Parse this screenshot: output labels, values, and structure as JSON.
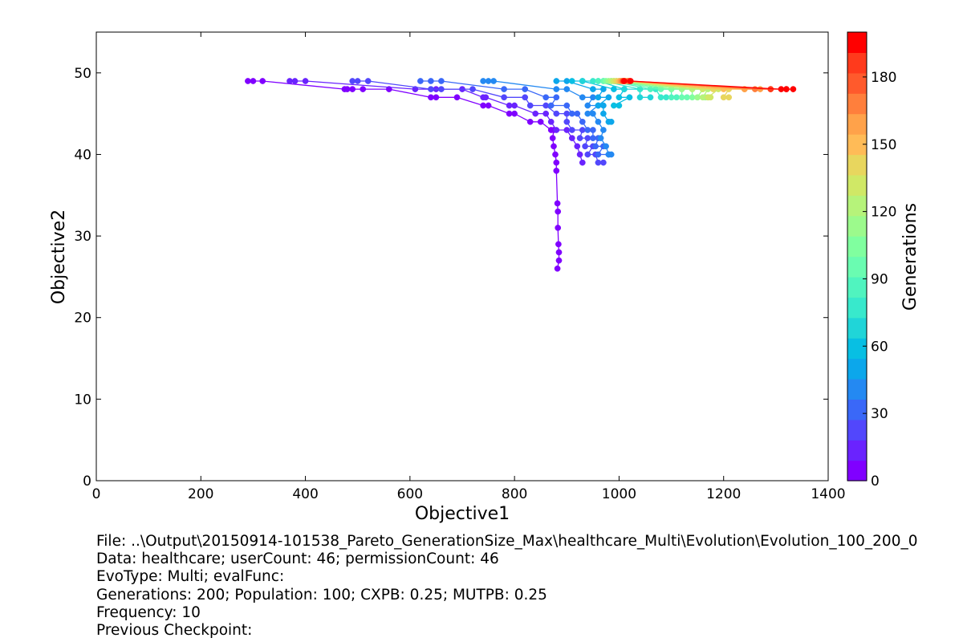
{
  "chart_data": {
    "type": "line",
    "title": "",
    "xlabel": "Objective1",
    "ylabel": "Objective2",
    "xlim": [
      0,
      1400
    ],
    "ylim": [
      0,
      55
    ],
    "xticks": [
      0,
      200,
      400,
      600,
      800,
      1000,
      1200,
      1400
    ],
    "yticks": [
      0,
      10,
      20,
      30,
      40,
      50
    ],
    "grid": false,
    "colorbar": {
      "label": "Generations",
      "colormap": "rainbow",
      "range": [
        0,
        200
      ],
      "ticks": [
        0,
        30,
        60,
        90,
        120,
        150,
        180
      ],
      "colors": [
        "#8000ff",
        "#6a23fe",
        "#5247fc",
        "#3a68f8",
        "#2489f2",
        "#0ca7eb",
        "#08bfe3",
        "#20d5d8",
        "#38e9cc",
        "#50f4bf",
        "#6afcb1",
        "#80ff9f",
        "#9cfa8c",
        "#b6f37a",
        "#d0e866",
        "#e8d65e",
        "#ffbb57",
        "#ffa24a",
        "#ff7f3c",
        "#ff5a2c",
        "#ff3a1c",
        "#ff0000"
      ]
    },
    "series": [
      {
        "generation": 0,
        "color": "#8000ff",
        "points": [
          [
            290,
            49
          ],
          [
            300,
            49
          ],
          [
            318,
            49
          ],
          [
            475,
            48
          ],
          [
            480,
            48
          ],
          [
            490,
            48
          ],
          [
            510,
            48
          ],
          [
            560,
            48
          ],
          [
            640,
            47
          ],
          [
            650,
            47
          ],
          [
            690,
            47
          ],
          [
            740,
            46
          ],
          [
            750,
            46
          ],
          [
            790,
            45
          ],
          [
            800,
            45
          ],
          [
            830,
            44
          ],
          [
            850,
            44
          ],
          [
            870,
            43
          ],
          [
            875,
            43
          ],
          [
            873,
            42
          ],
          [
            875,
            41
          ],
          [
            878,
            40
          ],
          [
            880,
            39
          ],
          [
            880,
            38
          ],
          [
            882,
            34
          ],
          [
            883,
            33
          ],
          [
            883,
            31
          ],
          [
            884,
            29
          ],
          [
            885,
            28
          ],
          [
            885,
            27
          ],
          [
            882,
            26
          ]
        ]
      },
      {
        "generation": 10,
        "color": "#6a23fe",
        "points": [
          [
            370,
            49
          ],
          [
            380,
            49
          ],
          [
            400,
            49
          ],
          [
            610,
            48
          ],
          [
            650,
            48
          ],
          [
            700,
            48
          ],
          [
            740,
            47
          ],
          [
            745,
            47
          ],
          [
            790,
            46
          ],
          [
            800,
            46
          ],
          [
            840,
            45
          ],
          [
            860,
            45
          ],
          [
            870,
            44
          ],
          [
            880,
            43
          ],
          [
            900,
            43
          ],
          [
            910,
            42
          ],
          [
            920,
            41
          ],
          [
            925,
            40
          ],
          [
            930,
            39
          ]
        ]
      },
      {
        "generation": 20,
        "color": "#5247fc",
        "points": [
          [
            490,
            49
          ],
          [
            500,
            49
          ],
          [
            520,
            49
          ],
          [
            640,
            48
          ],
          [
            660,
            48
          ],
          [
            720,
            48
          ],
          [
            780,
            47
          ],
          [
            820,
            47
          ],
          [
            830,
            46
          ],
          [
            860,
            46
          ],
          [
            880,
            45
          ],
          [
            900,
            45
          ],
          [
            900,
            44
          ],
          [
            910,
            43
          ],
          [
            930,
            43
          ],
          [
            925,
            42
          ],
          [
            940,
            42
          ],
          [
            935,
            41
          ],
          [
            950,
            41
          ],
          [
            940,
            40
          ],
          [
            955,
            40
          ],
          [
            960,
            39
          ],
          [
            970,
            39
          ]
        ]
      },
      {
        "generation": 30,
        "color": "#3a68f8",
        "points": [
          [
            620,
            49
          ],
          [
            640,
            49
          ],
          [
            660,
            49
          ],
          [
            780,
            48
          ],
          [
            820,
            48
          ],
          [
            860,
            47
          ],
          [
            880,
            47
          ],
          [
            870,
            46
          ],
          [
            900,
            46
          ],
          [
            910,
            45
          ],
          [
            920,
            45
          ],
          [
            930,
            44
          ],
          [
            940,
            43
          ],
          [
            950,
            43
          ],
          [
            950,
            42
          ],
          [
            960,
            42
          ],
          [
            955,
            41
          ],
          [
            970,
            41
          ],
          [
            960,
            40
          ],
          [
            980,
            40
          ]
        ]
      },
      {
        "generation": 40,
        "color": "#2489f2",
        "points": [
          [
            740,
            49
          ],
          [
            750,
            49
          ],
          [
            760,
            49
          ],
          [
            880,
            48
          ],
          [
            900,
            48
          ],
          [
            930,
            47
          ],
          [
            950,
            47
          ],
          [
            940,
            46
          ],
          [
            960,
            46
          ],
          [
            940,
            45
          ],
          [
            950,
            45
          ],
          [
            960,
            44
          ],
          [
            970,
            43
          ],
          [
            965,
            42
          ],
          [
            975,
            41
          ],
          [
            980,
            40
          ],
          [
            985,
            40
          ]
        ]
      },
      {
        "generation": 50,
        "color": "#0ca7eb",
        "points": [
          [
            880,
            49
          ],
          [
            900,
            49
          ],
          [
            950,
            48
          ],
          [
            970,
            48
          ],
          [
            960,
            47
          ],
          [
            980,
            47
          ],
          [
            960,
            46
          ],
          [
            970,
            46
          ],
          [
            970,
            45
          ],
          [
            980,
            44
          ],
          [
            985,
            44
          ]
        ]
      },
      {
        "generation": 60,
        "color": "#08bfe3",
        "points": [
          [
            910,
            49
          ],
          [
            930,
            49
          ],
          [
            990,
            48
          ],
          [
            1010,
            48
          ],
          [
            1000,
            47
          ],
          [
            1020,
            47
          ],
          [
            990,
            46
          ],
          [
            1000,
            46
          ]
        ]
      },
      {
        "generation": 70,
        "color": "#20d5d8",
        "points": [
          [
            930,
            49
          ],
          [
            960,
            49
          ],
          [
            1010,
            48
          ],
          [
            1040,
            48
          ],
          [
            1040,
            47
          ],
          [
            1060,
            47
          ]
        ]
      },
      {
        "generation": 80,
        "color": "#38e9cc",
        "points": [
          [
            950,
            49
          ],
          [
            970,
            49
          ],
          [
            1040,
            48
          ],
          [
            1070,
            48
          ],
          [
            1080,
            47
          ],
          [
            1090,
            47
          ]
        ]
      },
      {
        "generation": 90,
        "color": "#50f4bf",
        "points": [
          [
            960,
            49
          ],
          [
            985,
            49
          ],
          [
            1060,
            48
          ],
          [
            1100,
            48
          ],
          [
            1100,
            47
          ],
          [
            1110,
            47
          ]
        ]
      },
      {
        "generation": 100,
        "color": "#6afcb1",
        "points": [
          [
            970,
            49
          ],
          [
            990,
            49
          ],
          [
            1080,
            48
          ],
          [
            1120,
            48
          ],
          [
            1120,
            47
          ],
          [
            1130,
            47
          ]
        ]
      },
      {
        "generation": 110,
        "color": "#80ff9f",
        "points": [
          [
            975,
            49
          ],
          [
            995,
            49
          ],
          [
            1100,
            48
          ],
          [
            1140,
            48
          ],
          [
            1140,
            47
          ],
          [
            1150,
            47
          ]
        ]
      },
      {
        "generation": 120,
        "color": "#9cfa8c",
        "points": [
          [
            980,
            49
          ],
          [
            1000,
            49
          ],
          [
            1120,
            48
          ],
          [
            1160,
            48
          ],
          [
            1150,
            47
          ],
          [
            1165,
            47
          ]
        ]
      },
      {
        "generation": 130,
        "color": "#b6f37a",
        "points": [
          [
            985,
            49
          ],
          [
            1005,
            49
          ],
          [
            1140,
            48
          ],
          [
            1170,
            48
          ],
          [
            1160,
            47
          ],
          [
            1170,
            47
          ]
        ]
      },
      {
        "generation": 140,
        "color": "#d0e866",
        "points": [
          [
            990,
            49
          ],
          [
            1010,
            49
          ],
          [
            1160,
            48
          ],
          [
            1190,
            48
          ],
          [
            1170,
            47
          ],
          [
            1175,
            47
          ]
        ]
      },
      {
        "generation": 150,
        "color": "#e8d65e",
        "points": [
          [
            995,
            49
          ],
          [
            1012,
            49
          ],
          [
            1180,
            48
          ],
          [
            1210,
            48
          ],
          [
            1200,
            47
          ],
          [
            1210,
            47
          ]
        ]
      },
      {
        "generation": 160,
        "color": "#ffbb57",
        "points": [
          [
            1000,
            49
          ],
          [
            1014,
            49
          ],
          [
            1200,
            48
          ],
          [
            1240,
            48
          ]
        ]
      },
      {
        "generation": 170,
        "color": "#ffa24a",
        "points": [
          [
            1003,
            49
          ],
          [
            1016,
            49
          ],
          [
            1240,
            48
          ],
          [
            1270,
            48
          ]
        ]
      },
      {
        "generation": 180,
        "color": "#ff7f3c",
        "points": [
          [
            1006,
            49
          ],
          [
            1018,
            49
          ],
          [
            1260,
            48
          ],
          [
            1290,
            48
          ]
        ]
      },
      {
        "generation": 190,
        "color": "#ff3a1c",
        "points": [
          [
            1008,
            49
          ],
          [
            1020,
            49
          ],
          [
            1290,
            48
          ],
          [
            1320,
            48
          ]
        ]
      },
      {
        "generation": 200,
        "color": "#ff0000",
        "points": [
          [
            1010,
            49
          ],
          [
            1022,
            49
          ],
          [
            1310,
            48
          ],
          [
            1320,
            48
          ],
          [
            1333,
            48
          ]
        ]
      }
    ]
  },
  "info": {
    "file": "File: ..\\Output\\20150914-101538_Pareto_GenerationSize_Max\\healthcare_Multi\\Evolution\\Evolution_100_200_0",
    "data": "Data: healthcare; userCount: 46; permissionCount: 46",
    "evotype": "EvoType: Multi; evalFunc:",
    "generations": "Generations: 200; Population: 100; CXPB: 0.25; MUTPB: 0.25",
    "frequency": "Frequency: 10",
    "checkpoint": "Previous Checkpoint:"
  }
}
